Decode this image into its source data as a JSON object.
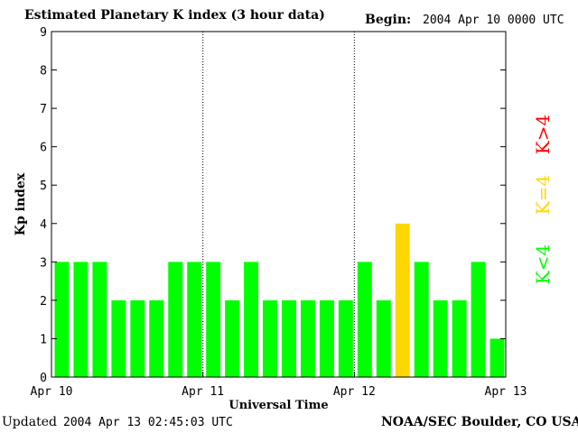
{
  "header": {
    "title": "Estimated Planetary K index (3 hour data)",
    "begin_label": "Begin:",
    "begin_value": "2004 Apr 10 0000 UTC"
  },
  "footer": {
    "updated_label": "Updated",
    "updated_value": "2004 Apr 13 02:45:03 UTC",
    "source": "NOAA/SEC Boulder, CO USA"
  },
  "legend": {
    "low": {
      "text": "K<4",
      "color": "#00ff00"
    },
    "mid": {
      "text": "K=4",
      "color": "#ffd700"
    },
    "high": {
      "text": "K>4",
      "color": "#ff0000"
    }
  },
  "chart_data": {
    "type": "bar",
    "xlabel": "Universal Time",
    "ylabel": "Kp index",
    "ylim": [
      0,
      9
    ],
    "yticks": [
      0,
      1,
      2,
      3,
      4,
      5,
      6,
      7,
      8,
      9
    ],
    "xtick_labels": [
      "Apr 10",
      "Apr 11",
      "Apr 12",
      "Apr 13"
    ],
    "day_separators": "dotted vertical lines at day boundaries",
    "values": [
      3,
      3,
      3,
      2,
      2,
      2,
      3,
      3,
      3,
      2,
      3,
      2,
      2,
      2,
      2,
      2,
      3,
      2,
      4,
      3,
      2,
      2,
      3,
      1
    ],
    "bar_colors": {
      "below_4": "#00ff00",
      "equal_4": "#ffd700",
      "above_4": "#ff0000"
    }
  }
}
